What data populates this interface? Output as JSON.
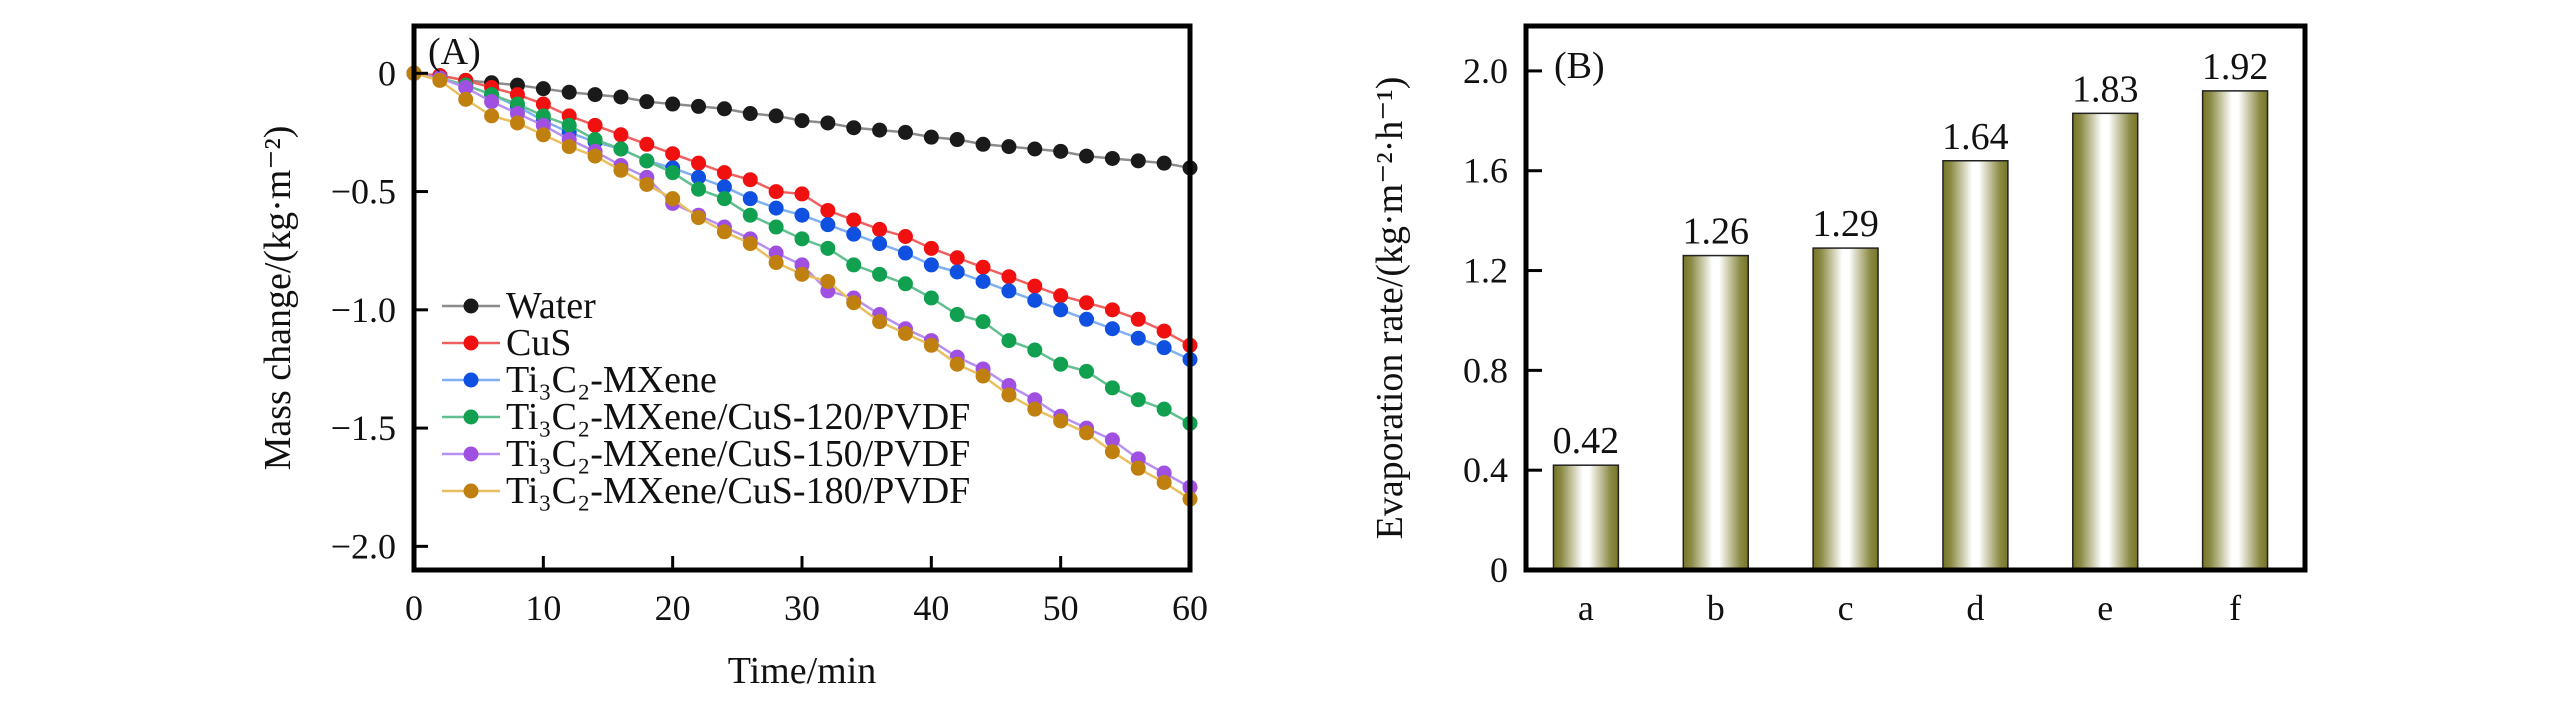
{
  "chart_data": [
    {
      "type": "line",
      "panel_label": "(A)",
      "xlabel": "Time/min",
      "ylabel": "Mass change/(kg·m⁻²)",
      "xlim": [
        0,
        60
      ],
      "ylim": [
        -2.1,
        0.2
      ],
      "xticks": [
        0,
        10,
        20,
        30,
        40,
        50,
        60
      ],
      "xtick_labels": [
        "0",
        "10",
        "20",
        "30",
        "40",
        "50",
        "60"
      ],
      "yticks": [
        0,
        -0.5,
        -1.0,
        -1.5,
        -2.0
      ],
      "ytick_labels": [
        "0",
        "−0.5",
        "−1.0",
        "−1.5",
        "−2.0"
      ],
      "grid": false,
      "legend_position": "lower-left",
      "x": [
        0,
        2,
        4,
        6,
        8,
        10,
        12,
        14,
        16,
        18,
        20,
        22,
        24,
        26,
        28,
        30,
        32,
        34,
        36,
        38,
        40,
        42,
        44,
        46,
        48,
        50,
        52,
        54,
        56,
        58,
        60
      ],
      "series": [
        {
          "name": "Water",
          "color": "#1a1a1a",
          "line_color": "#8c8c8c",
          "values": [
            0,
            -0.01,
            -0.03,
            -0.04,
            -0.05,
            -0.065,
            -0.08,
            -0.09,
            -0.1,
            -0.12,
            -0.13,
            -0.14,
            -0.15,
            -0.17,
            -0.18,
            -0.2,
            -0.21,
            -0.23,
            -0.24,
            -0.25,
            -0.27,
            -0.28,
            -0.3,
            -0.31,
            -0.32,
            -0.33,
            -0.35,
            -0.36,
            -0.37,
            -0.38,
            -0.4
          ]
        },
        {
          "name": "CuS",
          "color": "#f01010",
          "line_color": "#f06060",
          "values": [
            0,
            -0.01,
            -0.03,
            -0.06,
            -0.09,
            -0.13,
            -0.18,
            -0.22,
            -0.26,
            -0.3,
            -0.34,
            -0.38,
            -0.42,
            -0.45,
            -0.5,
            -0.51,
            -0.58,
            -0.62,
            -0.66,
            -0.69,
            -0.74,
            -0.78,
            -0.82,
            -0.86,
            -0.9,
            -0.94,
            -0.97,
            -1.0,
            -1.04,
            -1.09,
            -1.15
          ]
        },
        {
          "name": "Ti₃C₂-MXene",
          "color": "#1050e0",
          "line_color": "#80b0f0",
          "values": [
            0,
            -0.02,
            -0.05,
            -0.09,
            -0.14,
            -0.2,
            -0.25,
            -0.29,
            -0.32,
            -0.37,
            -0.4,
            -0.44,
            -0.48,
            -0.53,
            -0.57,
            -0.6,
            -0.64,
            -0.68,
            -0.72,
            -0.76,
            -0.81,
            -0.84,
            -0.88,
            -0.92,
            -0.96,
            -1.0,
            -1.04,
            -1.08,
            -1.12,
            -1.16,
            -1.21
          ]
        },
        {
          "name": "Ti₃C₂-MXene/CuS-120/PVDF",
          "color": "#10a050",
          "line_color": "#60c090",
          "values": [
            0,
            -0.02,
            -0.05,
            -0.09,
            -0.13,
            -0.18,
            -0.22,
            -0.28,
            -0.32,
            -0.37,
            -0.42,
            -0.49,
            -0.53,
            -0.6,
            -0.65,
            -0.7,
            -0.74,
            -0.81,
            -0.85,
            -0.89,
            -0.95,
            -1.02,
            -1.05,
            -1.13,
            -1.17,
            -1.23,
            -1.26,
            -1.33,
            -1.38,
            -1.42,
            -1.48
          ]
        },
        {
          "name": "Ti₃C₂-MXene/CuS-150/PVDF",
          "color": "#a050e0",
          "line_color": "#b890f0",
          "values": [
            0,
            -0.02,
            -0.06,
            -0.12,
            -0.17,
            -0.22,
            -0.28,
            -0.33,
            -0.39,
            -0.44,
            -0.55,
            -0.6,
            -0.65,
            -0.7,
            -0.76,
            -0.81,
            -0.92,
            -0.95,
            -1.02,
            -1.08,
            -1.13,
            -1.2,
            -1.25,
            -1.32,
            -1.38,
            -1.45,
            -1.5,
            -1.55,
            -1.63,
            -1.69,
            -1.75
          ]
        },
        {
          "name": "Ti₃C₂-MXene/CuS-180/PVDF",
          "color": "#c08010",
          "line_color": "#e8c060",
          "values": [
            0,
            -0.03,
            -0.11,
            -0.18,
            -0.21,
            -0.26,
            -0.31,
            -0.35,
            -0.41,
            -0.47,
            -0.53,
            -0.61,
            -0.67,
            -0.72,
            -0.8,
            -0.85,
            -0.88,
            -0.97,
            -1.05,
            -1.1,
            -1.15,
            -1.23,
            -1.28,
            -1.36,
            -1.42,
            -1.47,
            -1.52,
            -1.6,
            -1.67,
            -1.73,
            -1.8
          ]
        }
      ]
    },
    {
      "type": "bar",
      "panel_label": "(B)",
      "xlabel": "",
      "ylabel": "Evaporation rate/(kg·m⁻²·h⁻¹)",
      "categories": [
        "a",
        "b",
        "c",
        "d",
        "e",
        "f"
      ],
      "values": [
        0.42,
        1.26,
        1.29,
        1.64,
        1.83,
        1.92
      ],
      "value_labels": [
        "0.42",
        "1.26",
        "1.29",
        "1.64",
        "1.83",
        "1.92"
      ],
      "ylim": [
        0,
        2.18
      ],
      "yticks": [
        0,
        0.4,
        0.8,
        1.2,
        1.6,
        2.0
      ],
      "ytick_labels": [
        "0",
        "0.4",
        "0.8",
        "1.2",
        "1.6",
        "2.0"
      ],
      "grid": false,
      "bar_color": "#767628"
    }
  ]
}
